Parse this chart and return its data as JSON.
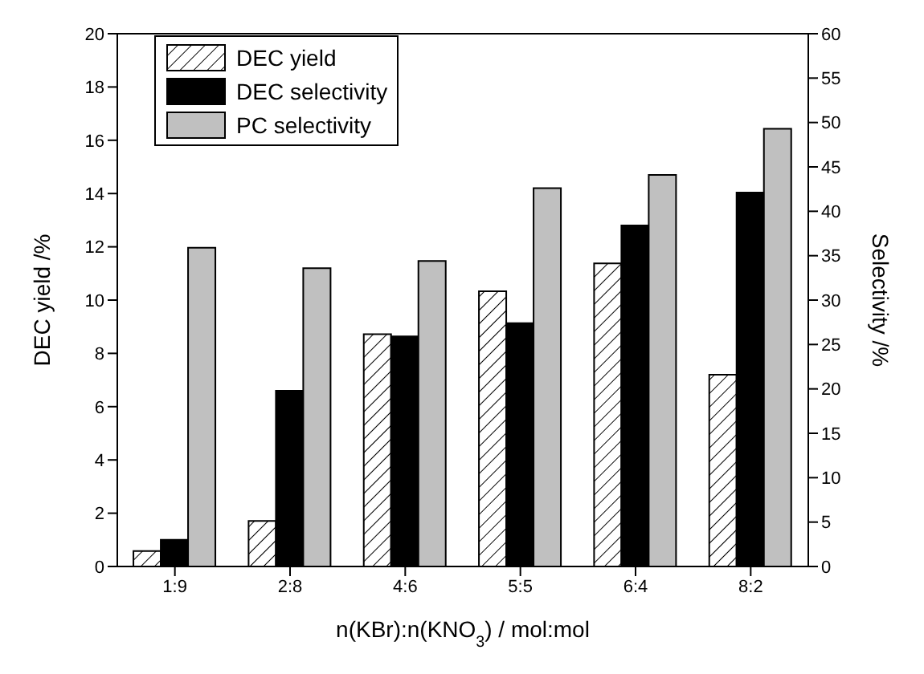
{
  "chart_data": {
    "type": "bar",
    "xlabel": "n(KBr):n(KNO$_{3}$) / mol:mol",
    "ylabel": "DEC yield /%",
    "y2label": "Selectivity /%",
    "categories": [
      "1:9",
      "2:8",
      "4:6",
      "5:5",
      "6:4",
      "8:2"
    ],
    "series": [
      {
        "name": "DEC yield",
        "color": "#000000",
        "values": [
          0.58,
          1.71,
          8.72,
          10.33,
          11.38,
          7.2
        ]
      },
      {
        "name": "DEC selectivity",
        "color": "#000000",
        "axis": "y2",
        "values": [
          3.0,
          19.8,
          25.9,
          27.4,
          38.4,
          42.1
        ]
      },
      {
        "name": "PC selectivity",
        "color": "#c0c0c0",
        "axis": "y2",
        "values": [
          35.9,
          33.6,
          34.4,
          42.6,
          44.1,
          49.3
        ]
      }
    ],
    "ylim": [
      0,
      20
    ],
    "yticks": [
      0,
      2,
      4,
      6,
      8,
      10,
      12,
      14,
      16,
      18,
      20
    ],
    "y2lim": [
      0,
      60
    ],
    "y2ticks": [
      0,
      5,
      10,
      15,
      20,
      25,
      30,
      35,
      40,
      45,
      50,
      55,
      60
    ],
    "legend": "top left",
    "grid": false
  }
}
